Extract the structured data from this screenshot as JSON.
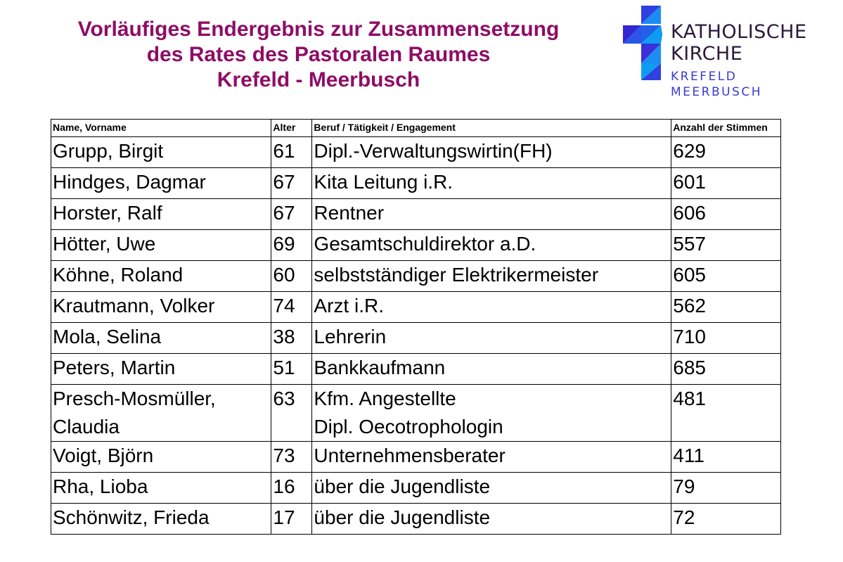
{
  "title": {
    "line1": "Vorläufiges Endergebnis zur Zusammensetzung",
    "line2": "des Rates des Pastoralen Raumes",
    "line3": "Krefeld - Meerbusch"
  },
  "logo": {
    "line1": "KATHOLISCHE",
    "line2": "KIRCHE",
    "line3": "KREFELD",
    "line4": "MEERBUSCH",
    "icon": "cross-logo-icon",
    "colors": {
      "cross_dark": "#3a2fd8",
      "cross_light": "#0a8ff0",
      "text_dark": "#2a1a3a",
      "text_blue": "#3a3ad0"
    }
  },
  "colors": {
    "title": "#8e0d66"
  },
  "table": {
    "headers": {
      "name": "Name, Vorname",
      "age": "Alter",
      "job": "Beruf / Tätigkeit / Engagement",
      "votes": "Anzahl der Stimmen"
    },
    "rows": [
      {
        "name": "Grupp, Birgit",
        "age": "61",
        "job": "Dipl.-Verwaltungswirtin(FH)",
        "votes": "629"
      },
      {
        "name": "Hindges, Dagmar",
        "age": "67",
        "job": "Kita Leitung i.R.",
        "votes": "601"
      },
      {
        "name": "Horster, Ralf",
        "age": "67",
        "job": "Rentner",
        "votes": "606"
      },
      {
        "name": "Hötter, Uwe",
        "age": "69",
        "job": "Gesamtschuldirektor a.D.",
        "votes": "557"
      },
      {
        "name": "Köhne, Roland",
        "age": "60",
        "job": "selbstständiger Elektrikermeister",
        "votes": "605"
      },
      {
        "name": "Krautmann, Volker",
        "age": "74",
        "job": "Arzt i.R.",
        "votes": "562"
      },
      {
        "name": "Mola, Selina",
        "age": "38",
        "job": "Lehrerin",
        "votes": "710"
      },
      {
        "name": "Peters, Martin",
        "age": "51",
        "job": "Bankkaufmann",
        "votes": "685"
      },
      {
        "name_line1": "Presch-Mosmüller,",
        "name_line2": "Claudia",
        "age": "63",
        "job_line1": "Kfm. Angestellte",
        "job_line2": "Dipl. Oecotrophologin",
        "votes": "481"
      },
      {
        "name": "Voigt, Björn",
        "age": "73",
        "job": "Unternehmensberater",
        "votes": "411"
      },
      {
        "name": "Rha, Lioba",
        "age": "16",
        "job": "über die Jugendliste",
        "votes": "79"
      },
      {
        "name": "Schönwitz, Frieda",
        "age": "17",
        "job": "über die Jugendliste",
        "votes": "72"
      }
    ]
  }
}
